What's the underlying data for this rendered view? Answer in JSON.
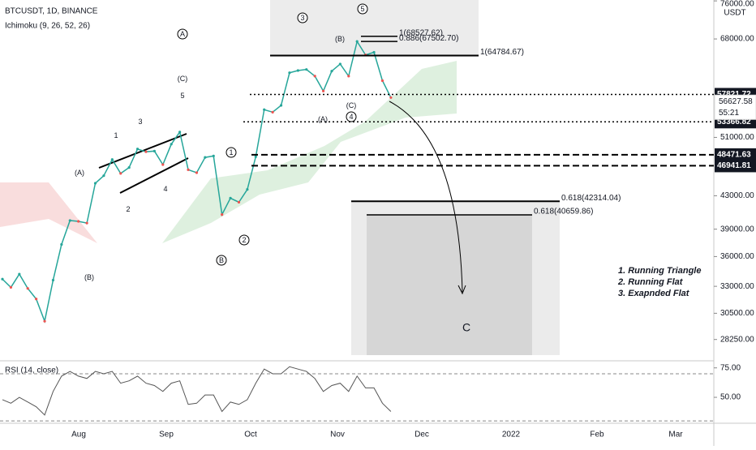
{
  "header": {
    "symbol": "BTCUSDT, 1D, BINANCE",
    "indicator": "Ichimoku (9, 26, 52, 26)",
    "currency": "USDT"
  },
  "price": {
    "ylim": [
      26860,
      76200
    ],
    "log": true,
    "yticks": [
      {
        "value": 76000,
        "label": "76000.00"
      },
      {
        "value": 68000,
        "label": "68000.00"
      },
      {
        "value": 51000,
        "label": "51000.00"
      },
      {
        "value": 43000,
        "label": "43000.00"
      },
      {
        "value": 39000,
        "label": "39000.00"
      },
      {
        "value": 36000,
        "label": "36000.00"
      },
      {
        "value": 33000,
        "label": "33000.00"
      },
      {
        "value": 30500,
        "label": "30500.00"
      },
      {
        "value": 28250,
        "label": "28250.00"
      }
    ],
    "close": [
      33700,
      32900,
      34200,
      32800,
      31800,
      29800,
      33600,
      37300,
      40000,
      39900,
      39700,
      44600,
      45600,
      47800,
      45900,
      46700,
      49300,
      48900,
      49000,
      47100,
      50000,
      51800,
      46400,
      46000,
      48100,
      48300,
      40700,
      42700,
      42200,
      43800,
      48200,
      55300,
      54900,
      56000,
      61600,
      62000,
      62200,
      61000,
      58400,
      61900,
      63200,
      61000,
      67500,
      64900,
      65400,
      60200,
      57300
    ],
    "levels": [
      {
        "value": 57821.72,
        "label": "57821.72"
      },
      {
        "value": 53366.82,
        "label": "53366.82"
      },
      {
        "value": 48471.63,
        "label": "48471.63"
      },
      {
        "value": 46941.81,
        "label": "46941.81"
      }
    ],
    "last": {
      "value": 56627.58,
      "label": "56627.58",
      "countdown": "55:21"
    },
    "fib": [
      {
        "value": 68527.62,
        "label": "1(68527.62)"
      },
      {
        "value": 67502.7,
        "label": "0.886(67502.70)"
      },
      {
        "value": 64784.67,
        "label": "1(64784.67)"
      },
      {
        "value": 42314.04,
        "label": "0.618(42314.04)"
      },
      {
        "value": 40659.86,
        "label": "0.618(40659.86)"
      }
    ]
  },
  "xticks": [
    "Aug",
    "Sep",
    "Oct",
    "Nov",
    "Dec",
    "2022",
    "Feb",
    "Mar"
  ],
  "waves": [
    "A",
    "(C)",
    "5",
    "1",
    "3",
    "(A)",
    "2",
    "4",
    "(B)",
    "B",
    "1",
    "2",
    "3",
    "5",
    "(B)",
    "(C)",
    "4",
    "(A)"
  ],
  "notes": [
    "1. Running Triangle",
    "2. Running Flat",
    "3. Exapnded Flat"
  ],
  "target": "C",
  "rsi": {
    "title": "RSI (14, close)",
    "ylim": [
      28,
      81
    ],
    "bands": [
      70,
      30
    ],
    "yticks": [
      {
        "value": 75,
        "label": "75.00"
      },
      {
        "value": 50,
        "label": "50.00"
      }
    ],
    "values": [
      48,
      45,
      50,
      46,
      42,
      35,
      55,
      68,
      72,
      68,
      66,
      72,
      70,
      72,
      62,
      64,
      68,
      62,
      60,
      55,
      62,
      64,
      44,
      45,
      52,
      52,
      38,
      46,
      44,
      48,
      62,
      74,
      70,
      70,
      76,
      74,
      72,
      66,
      55,
      60,
      62,
      55,
      68,
      58,
      58,
      45,
      38
    ]
  }
}
